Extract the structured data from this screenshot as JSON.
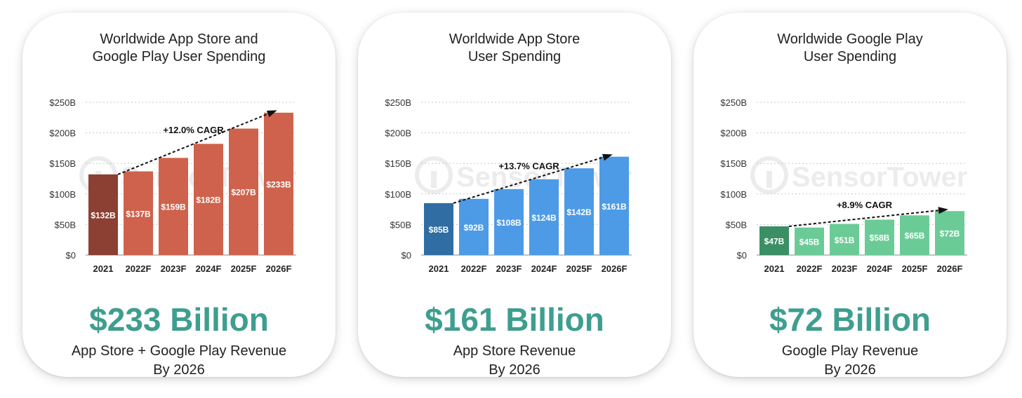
{
  "chart_data": [
    {
      "type": "bar",
      "title_lines": [
        "Worldwide App Store and",
        "Google Play User Spending"
      ],
      "categories": [
        "2021",
        "2022F",
        "2023F",
        "2024F",
        "2025F",
        "2026F"
      ],
      "values": [
        132,
        137,
        159,
        182,
        207,
        233
      ],
      "value_labels": [
        "$132B",
        "$137B",
        "$159B",
        "$182B",
        "$207B",
        "$233B"
      ],
      "ylim": [
        0,
        250
      ],
      "yticks": [
        0,
        50,
        100,
        150,
        200,
        250
      ],
      "ytick_labels": [
        "$0",
        "$50B",
        "$100B",
        "$150B",
        "$200B",
        "$250B"
      ],
      "grid": true,
      "annotation": "+12.0% CAGR",
      "colors": {
        "actual": "#8c3f33",
        "forecast": "#cf624c"
      },
      "headline": "$233 Billion",
      "caption_lines": [
        "App Store + Google Play Revenue",
        "By 2026"
      ]
    },
    {
      "type": "bar",
      "title_lines": [
        "Worldwide App Store",
        "User Spending"
      ],
      "categories": [
        "2021",
        "2022F",
        "2023F",
        "2024F",
        "2025F",
        "2026F"
      ],
      "values": [
        85,
        92,
        108,
        124,
        142,
        161
      ],
      "value_labels": [
        "$85B",
        "$92B",
        "$108B",
        "$124B",
        "$142B",
        "$161B"
      ],
      "ylim": [
        0,
        250
      ],
      "yticks": [
        0,
        50,
        100,
        150,
        200,
        250
      ],
      "ytick_labels": [
        "$0",
        "$50B",
        "$100B",
        "$150B",
        "$200B",
        "$250B"
      ],
      "grid": true,
      "annotation": "+13.7% CAGR",
      "colors": {
        "actual": "#2f6da3",
        "forecast": "#4d9be6"
      },
      "headline": "$161 Billion",
      "caption_lines": [
        "App Store Revenue",
        "By 2026"
      ]
    },
    {
      "type": "bar",
      "title_lines": [
        "Worldwide Google Play",
        "User Spending"
      ],
      "categories": [
        "2021",
        "2022F",
        "2023F",
        "2024F",
        "2025F",
        "2026F"
      ],
      "values": [
        47,
        45,
        51,
        58,
        65,
        72
      ],
      "value_labels": [
        "$47B",
        "$45B",
        "$51B",
        "$58B",
        "$65B",
        "$72B"
      ],
      "ylim": [
        0,
        250
      ],
      "yticks": [
        0,
        50,
        100,
        150,
        200,
        250
      ],
      "ytick_labels": [
        "$0",
        "$50B",
        "$100B",
        "$150B",
        "$200B",
        "$250B"
      ],
      "grid": true,
      "annotation": "+8.9% CAGR",
      "colors": {
        "actual": "#3b8f64",
        "forecast": "#6bcb97"
      },
      "headline": "$72 Billion",
      "caption_lines": [
        "Google Play Revenue",
        "By 2026"
      ]
    }
  ],
  "watermark": "SensorTower"
}
